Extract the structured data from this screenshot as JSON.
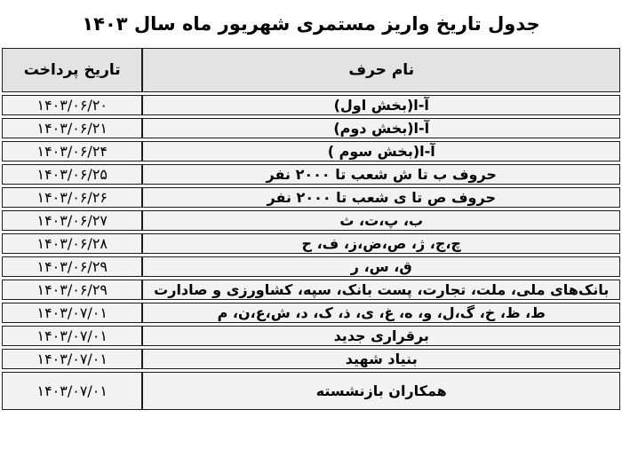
{
  "title": "جدول تاریخ واریز مستمری شهریور ماه سال ۱۴۰۳",
  "colors": {
    "border": "#1c1c1c",
    "header-bg": "#e3e3e3",
    "row-bg": "#f2f2f2",
    "text": "#000000",
    "page-bg": "#ffffff"
  },
  "table": {
    "headers": {
      "name": "نام حرف",
      "date": "تاریخ پرداخت"
    },
    "rows": [
      {
        "date": "۱۴۰۳/۰۶/۲۰",
        "name": "آ-ا(بخش اول)"
      },
      {
        "date": "۱۴۰۳/۰۶/۲۱",
        "name": "آ-ا(بخش دوم)"
      },
      {
        "date": "۱۴۰۳/۰۶/۲۴",
        "name": "آ-ا(بخش سوم )"
      },
      {
        "date": "۱۴۰۳/۰۶/۲۵",
        "name": "حروف ب تا ش شعب تا ۲۰۰۰ نفر"
      },
      {
        "date": "۱۴۰۳/۰۶/۲۶",
        "name": "حروف ص تا ی  شعب تا ۲۰۰۰ نفر"
      },
      {
        "date": "۱۴۰۳/۰۶/۲۷",
        "name": "ب، پ،ت، ث"
      },
      {
        "date": "۱۴۰۳/۰۶/۲۸",
        "name": "چ،ج، ژ، ص،ض،ز، ف، ح"
      },
      {
        "date": "۱۴۰۳/۰۶/۲۹",
        "name": "ق، س، ر"
      },
      {
        "date": "۱۴۰۳/۰۶/۲۹",
        "name": "بانک‌های ملی، ملت، تجارت، پست بانک، سپه، کشاورزی و صادارت"
      },
      {
        "date": "۱۴۰۳/۰۷/۰۱",
        "name": "ط، ظ، خ، گ،ل، و، ه، غ، ی، ذ، ک، د، ش،ع،ن، م"
      },
      {
        "date": "۱۴۰۳/۰۷/۰۱",
        "name": "برقراری جدید"
      },
      {
        "date": "۱۴۰۳/۰۷/۰۱",
        "name": "بنیاد شهید"
      },
      {
        "date": "۱۴۰۳/۰۷/۰۱",
        "name": "همکاران بازنشسته"
      }
    ]
  }
}
